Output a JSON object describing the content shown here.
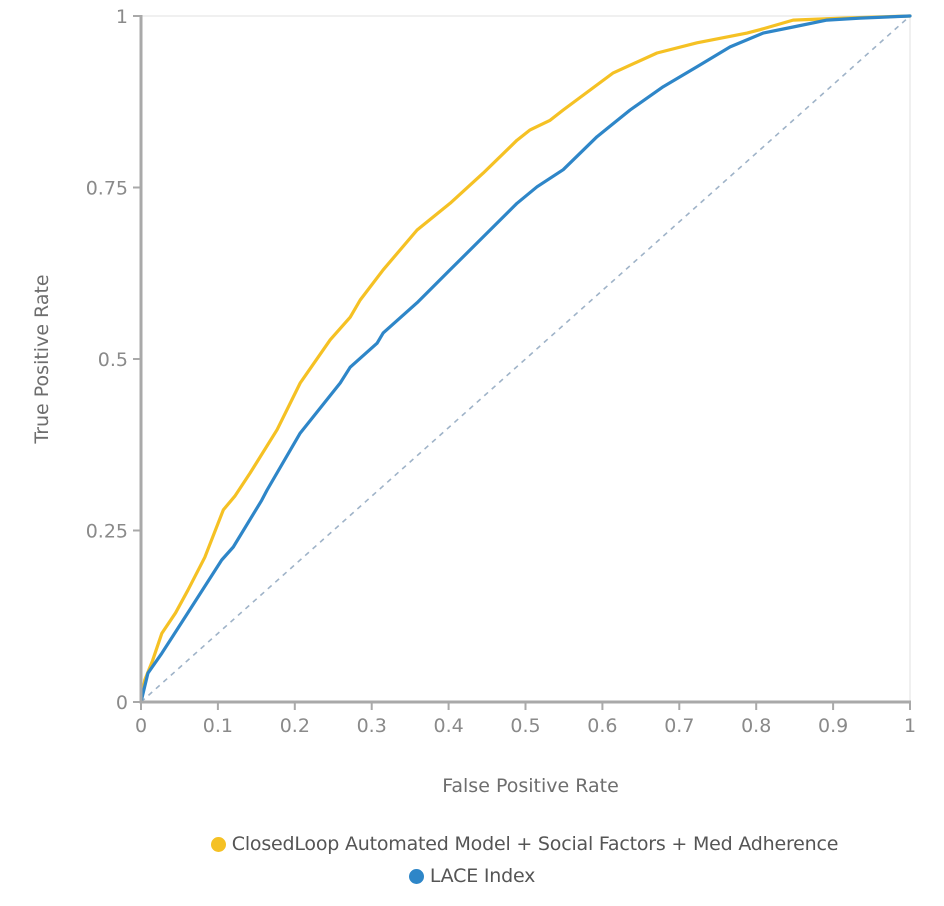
{
  "chart_data": {
    "type": "line",
    "title": "",
    "xlabel": "False Positive Rate",
    "ylabel": "True Positive Rate",
    "xlim": [
      0,
      1
    ],
    "ylim": [
      0,
      1
    ],
    "x_ticks": [
      0,
      0.1,
      0.2,
      0.3,
      0.4,
      0.5,
      0.6,
      0.7,
      0.8,
      0.9,
      1
    ],
    "x_tick_labels": [
      "0",
      "0.1",
      "0.2",
      "0.3",
      "0.4",
      "0.5",
      "0.6",
      "0.7",
      "0.8",
      "0.9",
      "1"
    ],
    "y_ticks": [
      0,
      0.25,
      0.5,
      0.75,
      1
    ],
    "y_tick_labels": [
      "0",
      "0.25",
      "0.5",
      "0.75",
      "1"
    ],
    "grid": false,
    "legend_position": "bottom-center",
    "reference_line": {
      "name": "random-chance",
      "x": [
        0,
        1
      ],
      "y": [
        0,
        1
      ],
      "style": "dashed",
      "color": "#9fb3c8"
    },
    "series": [
      {
        "name": "ClosedLoop Automated Model + Social Factors + Med Adherence",
        "color": "#f5c124",
        "x": [
          0,
          0.005,
          0.015,
          0.027,
          0.045,
          0.061,
          0.083,
          0.107,
          0.122,
          0.142,
          0.177,
          0.207,
          0.246,
          0.272,
          0.285,
          0.315,
          0.359,
          0.402,
          0.445,
          0.489,
          0.506,
          0.532,
          0.549,
          0.614,
          0.671,
          0.723,
          0.788,
          0.805,
          0.848,
          0.913,
          1
        ],
        "y": [
          0,
          0.032,
          0.06,
          0.1,
          0.13,
          0.163,
          0.211,
          0.28,
          0.3,
          0.334,
          0.397,
          0.465,
          0.528,
          0.561,
          0.586,
          0.63,
          0.688,
          0.727,
          0.771,
          0.819,
          0.834,
          0.848,
          0.863,
          0.917,
          0.946,
          0.961,
          0.975,
          0.98,
          0.994,
          0.997,
          1
        ]
      },
      {
        "name": "LACE Index",
        "color": "#2e86c8",
        "x": [
          0,
          0.009,
          0.027,
          0.061,
          0.105,
          0.12,
          0.157,
          0.164,
          0.207,
          0.259,
          0.272,
          0.307,
          0.315,
          0.359,
          0.402,
          0.445,
          0.489,
          0.515,
          0.549,
          0.593,
          0.636,
          0.679,
          0.723,
          0.766,
          0.809,
          0.848,
          0.892,
          0.935,
          1
        ],
        "y": [
          0,
          0.042,
          0.071,
          0.13,
          0.207,
          0.226,
          0.294,
          0.309,
          0.392,
          0.465,
          0.488,
          0.523,
          0.538,
          0.582,
          0.63,
          0.678,
          0.727,
          0.751,
          0.776,
          0.824,
          0.863,
          0.897,
          0.926,
          0.955,
          0.975,
          0.984,
          0.994,
          0.997,
          1
        ]
      }
    ]
  },
  "legend": {
    "items": [
      {
        "label": "ClosedLoop Automated Model + Social Factors + Med Adherence",
        "color": "#f5c124"
      },
      {
        "label": "LACE Index",
        "color": "#2e86c8"
      }
    ]
  }
}
